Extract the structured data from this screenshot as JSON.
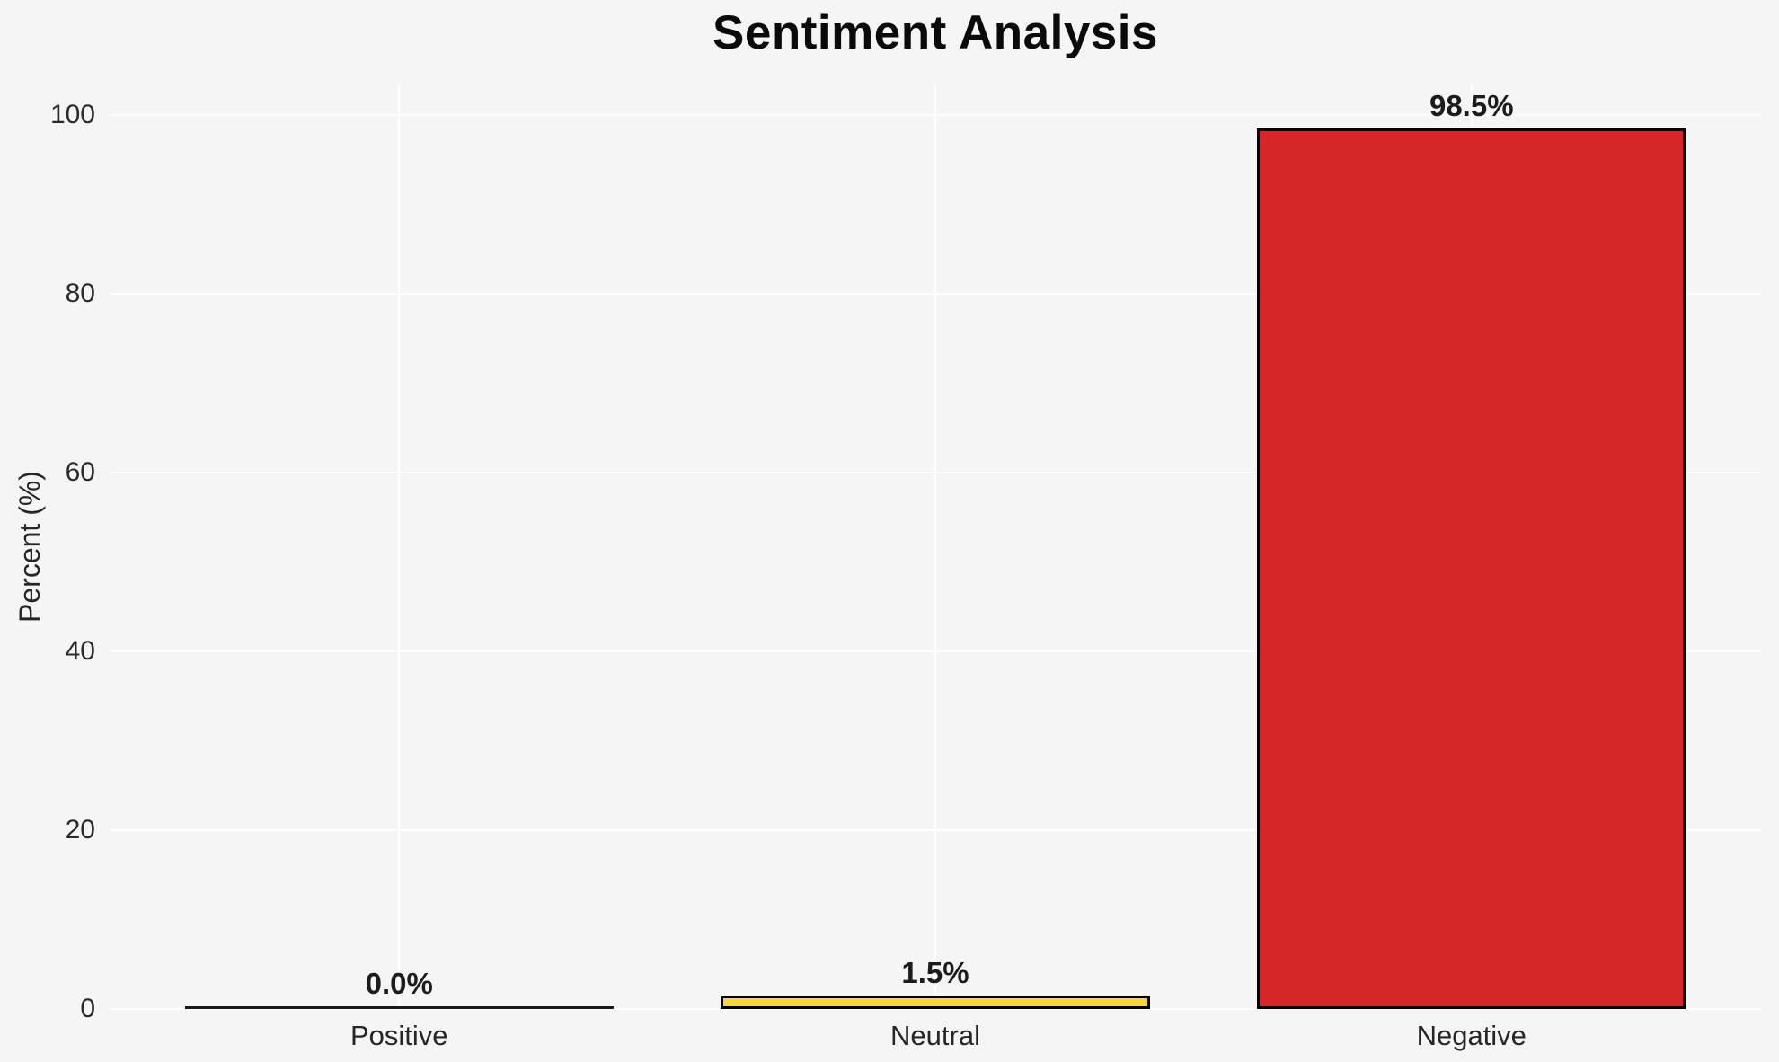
{
  "chart_data": {
    "type": "bar",
    "title": "Sentiment Analysis",
    "ylabel": "Percent (%)",
    "xlabel": "",
    "categories": [
      "Positive",
      "Neutral",
      "Negative"
    ],
    "values": [
      0.0,
      1.5,
      98.5
    ],
    "value_labels": [
      "0.0%",
      "1.5%",
      "98.5%"
    ],
    "bar_colors": [
      "#1a1a1a",
      "#fbd437",
      "#d62728"
    ],
    "bar_edge_color": "#000000",
    "bar_width": 0.8,
    "xlim": [
      -0.54,
      2.54
    ],
    "ylim": [
      0,
      103.5
    ],
    "yticks": [
      0,
      20,
      40,
      60,
      80,
      100
    ],
    "ytick_labels": [
      "0",
      "20",
      "40",
      "60",
      "80",
      "100"
    ],
    "grid": "on",
    "gridline_color": "#ffffff",
    "background_color": "#f5f5f6",
    "legend": "none"
  }
}
